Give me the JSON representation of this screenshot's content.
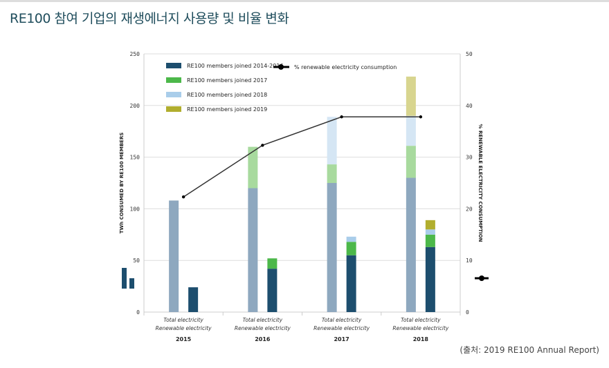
{
  "title": "RE100 참여 기업의 재생에너지 사용량 및 비율 변화",
  "source": "(출처: 2019 RE100 Annual Report)",
  "chart_data": {
    "type": "bar",
    "title": "",
    "ylabel": "TWh CONSUMED BY RE100 MEMBERS",
    "y2label": "% RENEWABLE ELECTRICITY CONSUMPTION",
    "ylim": [
      0,
      250
    ],
    "y2lim": [
      0,
      50
    ],
    "yticks": [
      "0",
      "50",
      "100",
      "150",
      "200",
      "250"
    ],
    "y2ticks": [
      "0",
      "10",
      "20",
      "30",
      "40",
      "50"
    ],
    "grid": true,
    "legend_placement": "top-left",
    "years": [
      "2015",
      "2016",
      "2017",
      "2018"
    ],
    "bar_labels": [
      "Total electricity",
      "Renewable electricity"
    ],
    "series": [
      {
        "name": "RE100 members joined 2014-2016",
        "color": "#1d4e6e",
        "faded_color": "#8ea8bf",
        "total": [
          108,
          120,
          125,
          130
        ],
        "renewable": [
          24,
          42,
          55,
          63
        ]
      },
      {
        "name": "RE100 members joined 2017",
        "color": "#4cb84a",
        "faded_color": "#a8da9e",
        "total": [
          0,
          40,
          18,
          31
        ],
        "renewable": [
          0,
          10,
          13,
          12
        ]
      },
      {
        "name": "RE100 members joined 2018",
        "color": "#a9cdea",
        "faded_color": "#d5e6f4",
        "total": [
          0,
          0,
          46,
          29
        ],
        "renewable": [
          0,
          0,
          5,
          5
        ]
      },
      {
        "name": "RE100 members joined 2019",
        "color": "#b1ae2e",
        "faded_color": "#d8d58f",
        "total": [
          0,
          0,
          0,
          38
        ],
        "renewable": [
          0,
          0,
          0,
          9
        ]
      }
    ],
    "line": {
      "name": "% renewable electricity consumption",
      "color": "#333333",
      "values": [
        22.3,
        32.3,
        37.8,
        37.8
      ]
    }
  }
}
